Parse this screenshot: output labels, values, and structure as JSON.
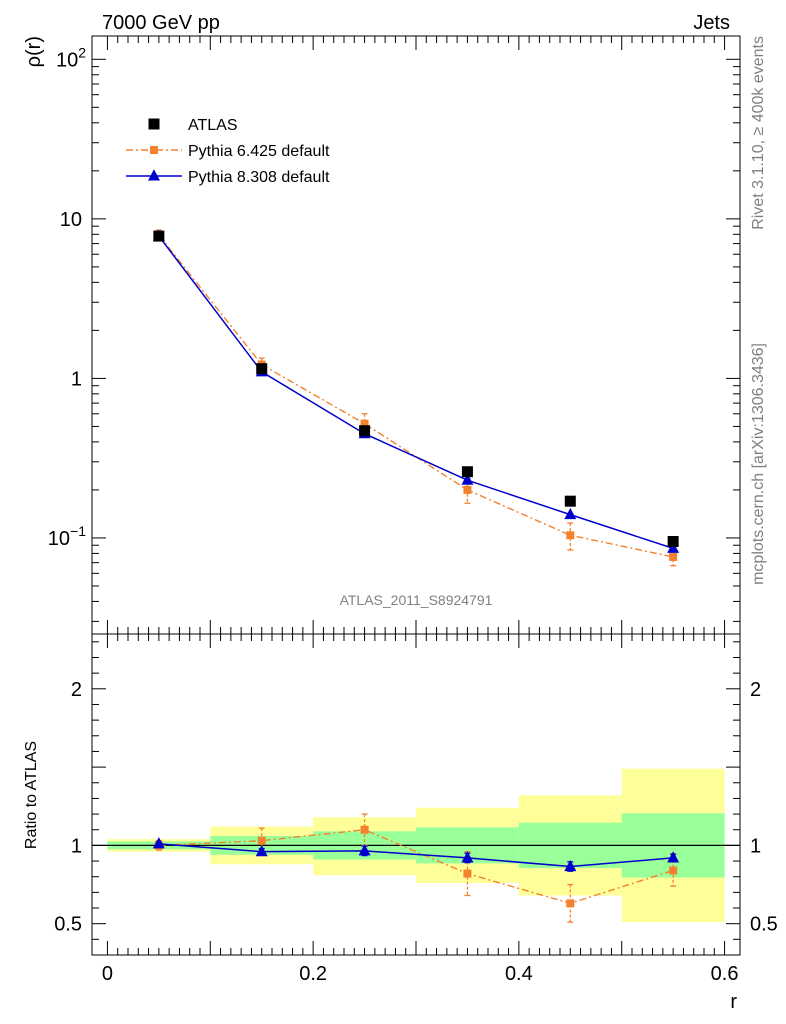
{
  "header": {
    "left": "7000 GeV pp",
    "right": "Jets"
  },
  "side_labels": {
    "rivet": "Rivet 3.1.10, ≥ 400k events",
    "mcplots": "mcplots.cern.ch [arXiv:1306.3436]"
  },
  "watermark": "ATLAS_2011_S8924791",
  "colors": {
    "data": "#000000",
    "pythia6": "#f4812e",
    "pythia8": "#0000cc",
    "band_inner": "#99ff99",
    "band_outer": "#ffff99"
  },
  "chart_data": [
    {
      "type": "line",
      "panel": "main",
      "ylabel": "ρ(r)",
      "yscale": "log",
      "ylim": [
        0.025,
        140
      ],
      "xlim": [
        -0.015,
        0.615
      ],
      "y_ticks": [
        {
          "value": 0.1,
          "base": "10",
          "exp": "−1"
        },
        {
          "value": 1,
          "base": "1",
          "exp": ""
        },
        {
          "value": 10,
          "base": "10",
          "exp": ""
        },
        {
          "value": 100,
          "base": "10",
          "exp": "2"
        }
      ],
      "legend_position": "top-left",
      "x": [
        0.05,
        0.15,
        0.25,
        0.35,
        0.45,
        0.55
      ],
      "series": [
        {
          "name": "ATLAS",
          "marker": "square",
          "values": [
            7.8,
            1.15,
            0.47,
            0.26,
            0.17,
            0.095
          ],
          "errors": [
            0.15,
            0.03,
            0.015,
            0.01,
            0.008,
            0.006
          ]
        },
        {
          "name": "Pythia 6.425 default",
          "marker": "square-small",
          "style": "dash-dot",
          "values": [
            7.9,
            1.22,
            0.52,
            0.2,
            0.104,
            0.076
          ],
          "errors": [
            0.6,
            0.12,
            0.08,
            0.035,
            0.02,
            0.009
          ]
        },
        {
          "name": "Pythia 8.308 default",
          "marker": "triangle",
          "style": "solid",
          "values": [
            7.8,
            1.1,
            0.45,
            0.23,
            0.14,
            0.086
          ],
          "errors": [
            0.1,
            0.03,
            0.015,
            0.01,
            0.007,
            0.004
          ]
        }
      ]
    },
    {
      "type": "line",
      "panel": "ratio",
      "ylabel": "Ratio to ATLAS",
      "xlabel": "r",
      "ylim": [
        0.3,
        2.35
      ],
      "xlim": [
        -0.015,
        0.615
      ],
      "x_ticks": [
        0,
        0.2,
        0.4,
        0.6
      ],
      "x_tick_labels": [
        "0",
        "0.2",
        "0.4",
        "0.6"
      ],
      "y_ticks": [
        0.5,
        1,
        2
      ],
      "y_tick_labels": [
        "0.5",
        "1",
        "2"
      ],
      "bins": [
        [
          0.0,
          0.1
        ],
        [
          0.1,
          0.2
        ],
        [
          0.2,
          0.3
        ],
        [
          0.3,
          0.4
        ],
        [
          0.4,
          0.5
        ],
        [
          0.5,
          0.6
        ]
      ],
      "band_inner": [
        [
          0.975,
          1.025
        ],
        [
          0.94,
          1.06
        ],
        [
          0.91,
          1.09
        ],
        [
          0.885,
          1.115
        ],
        [
          0.855,
          1.145
        ],
        [
          0.795,
          1.205
        ]
      ],
      "band_outer": [
        [
          0.96,
          1.04
        ],
        [
          0.88,
          1.12
        ],
        [
          0.81,
          1.18
        ],
        [
          0.76,
          1.24
        ],
        [
          0.68,
          1.32
        ],
        [
          0.51,
          1.49
        ]
      ],
      "x": [
        0.05,
        0.15,
        0.25,
        0.35,
        0.45,
        0.55
      ],
      "series": [
        {
          "name": "Pythia 6.425 default",
          "values": [
            1.0,
            1.03,
            1.1,
            0.82,
            0.63,
            0.84
          ],
          "errors": [
            0.03,
            0.08,
            0.1,
            0.14,
            0.12,
            0.1
          ]
        },
        {
          "name": "Pythia 8.308 default",
          "values": [
            1.01,
            0.96,
            0.965,
            0.92,
            0.865,
            0.92
          ],
          "errors": [
            0.01,
            0.02,
            0.03,
            0.03,
            0.03,
            0.025
          ]
        }
      ]
    }
  ]
}
